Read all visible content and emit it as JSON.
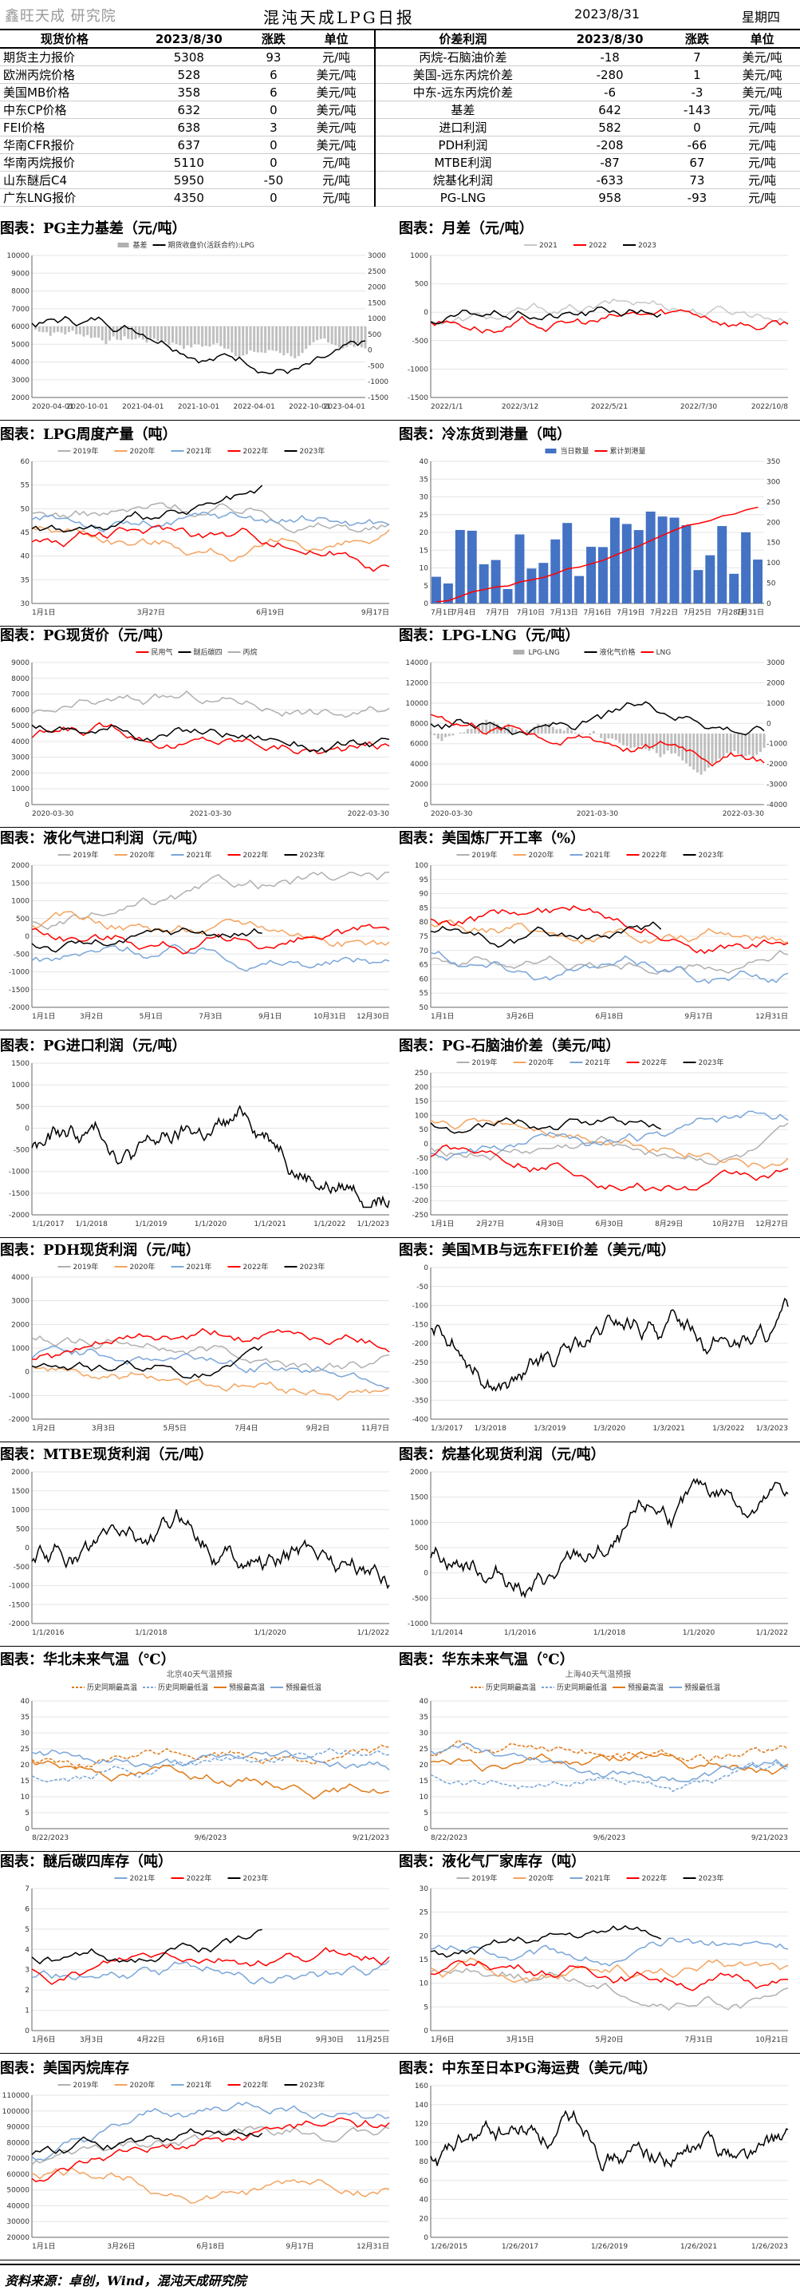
{
  "header": {
    "logo": "鑫旺天成 研究院",
    "title": "混沌天成LPG日报",
    "date": "2023/8/31",
    "weekday": "星期四"
  },
  "price_table": {
    "headers_left": [
      "现货价格",
      "2023/8/30",
      "涨跌",
      "单位"
    ],
    "headers_right": [
      "价差利润",
      "2023/8/30",
      "涨跌",
      "单位"
    ],
    "rows": [
      {
        "l": [
          "期货主力报价",
          "5308",
          "93",
          "元/吨"
        ],
        "r": [
          "丙烷-石脑油价差",
          "-18",
          "7",
          "美元/吨"
        ]
      },
      {
        "l": [
          "欧洲丙烷价格",
          "528",
          "6",
          "美元/吨"
        ],
        "r": [
          "美国-远东丙烷价差",
          "-280",
          "1",
          "美元/吨"
        ]
      },
      {
        "l": [
          "美国MB价格",
          "358",
          "6",
          "美元/吨"
        ],
        "r": [
          "中东-远东丙烷价差",
          "-6",
          "-3",
          "美元/吨"
        ]
      },
      {
        "l": [
          "中东CP价格",
          "632",
          "0",
          "美元/吨"
        ],
        "r": [
          "基差",
          "642",
          "-143",
          "元/吨"
        ]
      },
      {
        "l": [
          "FEI价格",
          "638",
          "3",
          "美元/吨"
        ],
        "r": [
          "进口利润",
          "582",
          "0",
          "元/吨"
        ]
      },
      {
        "l": [
          "华南CFR报价",
          "637",
          "0",
          "美元/吨"
        ],
        "r": [
          "PDH利润",
          "-208",
          "-66",
          "元/吨"
        ]
      },
      {
        "l": [
          "华南丙烷报价",
          "5110",
          "0",
          "元/吨"
        ],
        "r": [
          "MTBE利润",
          "-87",
          "67",
          "元/吨"
        ]
      },
      {
        "l": [
          "山东醚后C4",
          "5950",
          "-50",
          "元/吨"
        ],
        "r": [
          "烷基化利润",
          "-633",
          "73",
          "元/吨"
        ]
      },
      {
        "l": [
          "广东LNG报价",
          "4350",
          "0",
          "元/吨"
        ],
        "r": [
          "PG-LNG",
          "958",
          "-93",
          "元/吨"
        ]
      }
    ]
  },
  "charts": [
    {
      "title": "图表：PG主力基差（元/吨）",
      "legend": [
        "基差",
        "期货收盘价(活跃合约):LPG"
      ],
      "left_ticks": [
        "10000",
        "9000",
        "8000",
        "7000",
        "6000",
        "5000",
        "4000",
        "3000",
        "2000"
      ],
      "right_ticks": [
        "3000",
        "2500",
        "2000",
        "1500",
        "1000",
        "500",
        "0",
        "-500",
        "-1000",
        "-1500"
      ],
      "x_ticks": [
        "2020-04-01",
        "2020-10-01",
        "2021-04-01",
        "2021-10-01",
        "2022-04-01",
        "2022-10-01",
        "2023-04-01"
      ]
    },
    {
      "title": "图表：月差（元/吨）",
      "legend": [
        "2021",
        "2022",
        "2023"
      ],
      "left_ticks": [
        "1000",
        "500",
        "0",
        "-500",
        "-1000",
        "-1500"
      ],
      "right_ticks": [],
      "x_ticks": [
        "2022/1/1",
        "2022/3/12",
        "2022/5/21",
        "2022/7/30",
        "2022/10/8"
      ]
    },
    {
      "title": "图表：LPG周度产量（吨）",
      "legend": [
        "2019年",
        "2020年",
        "2021年",
        "2022年",
        "2023年"
      ],
      "left_ticks": [
        "60",
        "55",
        "50",
        "45",
        "40",
        "35",
        "30"
      ],
      "right_ticks": [],
      "x_ticks": [
        "1月1日",
        "3月27日",
        "6月19日",
        "9月17日"
      ]
    },
    {
      "title": "图表：冷冻货到港量（吨）",
      "legend": [
        "当日数量",
        "累计到港量"
      ],
      "left_ticks": [
        "40",
        "35",
        "30",
        "25",
        "20",
        "15",
        "10",
        "5",
        "0"
      ],
      "right_ticks": [
        "350",
        "300",
        "250",
        "200",
        "150",
        "100",
        "50",
        "0"
      ],
      "x_ticks": [
        "7月1日",
        "7月4日",
        "7月7日",
        "7月10日",
        "7月13日",
        "7月16日",
        "7月19日",
        "7月22日",
        "7月25日",
        "7月28日",
        "7月31日"
      ]
    },
    {
      "title": "图表：PG现货价（元/吨）",
      "legend": [
        "民用气",
        "醚后碳四",
        "丙烷"
      ],
      "left_ticks": [
        "9000",
        "8000",
        "7000",
        "6000",
        "5000",
        "4000",
        "3000",
        "2000",
        "1000",
        "0"
      ],
      "right_ticks": [],
      "x_ticks": [
        "2020-03-30",
        "2021-03-30",
        "2022-03-30"
      ]
    },
    {
      "title": "图表：LPG-LNG（元/吨）",
      "legend": [
        "LPG-LNG",
        "液化气价格",
        "LNG"
      ],
      "left_ticks": [
        "14000",
        "12000",
        "10000",
        "8000",
        "6000",
        "4000",
        "2000",
        "0"
      ],
      "right_ticks": [
        "3000",
        "2000",
        "1000",
        "0",
        "-1000",
        "-2000",
        "-3000",
        "-4000"
      ],
      "x_ticks": [
        "2020-03-30",
        "2021-03-30",
        "2022-03-30"
      ]
    },
    {
      "title": "图表：液化气进口利润（元/吨）",
      "legend": [
        "2019年",
        "2020年",
        "2021年",
        "2022年",
        "2023年"
      ],
      "left_ticks": [
        "2000",
        "1500",
        "1000",
        "500",
        "0",
        "-500",
        "-1000",
        "-1500",
        "-2000"
      ],
      "right_ticks": [],
      "x_ticks": [
        "1月1日",
        "3月2日",
        "5月1日",
        "7月3日",
        "9月1日",
        "10月31日",
        "12月30日"
      ]
    },
    {
      "title": "图表：美国炼厂开工率（%）",
      "legend": [
        "2019年",
        "2020年",
        "2021年",
        "2022年",
        "2023年"
      ],
      "left_ticks": [
        "100",
        "95",
        "90",
        "85",
        "80",
        "75",
        "70",
        "65",
        "60",
        "55",
        "50"
      ],
      "right_ticks": [],
      "x_ticks": [
        "1月1日",
        "3月26日",
        "6月18日",
        "9月17日",
        "12月31日"
      ]
    },
    {
      "title": "图表：PG进口利润（元/吨）",
      "legend": [],
      "left_ticks": [
        "1500",
        "1000",
        "500",
        "0",
        "-500",
        "-1000",
        "-1500",
        "-2000"
      ],
      "right_ticks": [],
      "x_ticks": [
        "1/1/2017",
        "1/1/2018",
        "1/1/2019",
        "1/1/2020",
        "1/1/2021",
        "1/1/2022",
        "1/1/2023"
      ]
    },
    {
      "title": "图表：PG-石脑油价差（美元/吨）",
      "legend": [
        "2019年",
        "2020年",
        "2021年",
        "2022年",
        "2023年"
      ],
      "left_ticks": [
        "250",
        "200",
        "150",
        "100",
        "50",
        "0",
        "-50",
        "-100",
        "-150",
        "-200",
        "-250"
      ],
      "right_ticks": [],
      "x_ticks": [
        "1月1日",
        "2月27日",
        "4月30日",
        "6月30日",
        "8月29日",
        "10月27日",
        "12月27日"
      ]
    },
    {
      "title": "图表：PDH现货利润（元/吨）",
      "legend": [
        "2019年",
        "2020年",
        "2021年",
        "2022年",
        "2023年"
      ],
      "left_ticks": [
        "4000",
        "3000",
        "2000",
        "1000",
        "0",
        "-1000",
        "-2000"
      ],
      "right_ticks": [],
      "x_ticks": [
        "1月2日",
        "3月3日",
        "5月5日",
        "7月4日",
        "9月2日",
        "11月7日"
      ]
    },
    {
      "title": "图表：美国MB与远东FEI价差（美元/吨）",
      "legend": [],
      "left_ticks": [
        "0",
        "-50",
        "-100",
        "-150",
        "-200",
        "-250",
        "-300",
        "-350",
        "-400"
      ],
      "right_ticks": [],
      "x_ticks": [
        "1/3/2017",
        "1/3/2018",
        "1/3/2019",
        "1/3/2020",
        "1/3/2021",
        "1/3/2022",
        "1/3/2023"
      ]
    },
    {
      "title": "图表：MTBE现货利润（元/吨）",
      "legend": [],
      "left_ticks": [
        "2000",
        "1500",
        "1000",
        "500",
        "0",
        "-500",
        "-1000",
        "-1500",
        "-2000"
      ],
      "right_ticks": [],
      "x_ticks": [
        "1/1/2016",
        "1/1/2018",
        "1/1/2020",
        "1/1/2022"
      ]
    },
    {
      "title": "图表：烷基化现货利润（元/吨）",
      "legend": [],
      "left_ticks": [
        "2000",
        "1500",
        "1000",
        "500",
        "0",
        "-500",
        "-1000"
      ],
      "right_ticks": [],
      "x_ticks": [
        "1/1/2014",
        "1/1/2016",
        "1/1/2018",
        "1/1/2020",
        "1/1/2022"
      ]
    },
    {
      "title": "图表：华北未来气温（℃）",
      "subtitle": "北京40天气温预报",
      "legend": [
        "历史同期最高温",
        "历史同期最低温",
        "预报最高温",
        "预报最低温"
      ],
      "left_ticks": [
        "40",
        "35",
        "30",
        "25",
        "20",
        "15",
        "10",
        "5",
        "0"
      ],
      "right_ticks": [],
      "x_ticks": [
        "8/22/2023",
        "9/6/2023",
        "9/21/2023"
      ]
    },
    {
      "title": "图表：华东未来气温（℃）",
      "subtitle": "上海40天气温预报",
      "legend": [
        "历史同期最高温",
        "历史同期最低温",
        "预报最高温",
        "预报最低温"
      ],
      "left_ticks": [
        "40",
        "35",
        "30",
        "25",
        "20",
        "15",
        "10",
        "5",
        "0"
      ],
      "right_ticks": [],
      "x_ticks": [
        "8/22/2023",
        "9/6/2023",
        "9/21/2023"
      ]
    },
    {
      "title": "图表：醚后碳四库存（吨）",
      "legend": [
        "2021年",
        "2022年",
        "2023年"
      ],
      "left_ticks": [
        "7",
        "6",
        "5",
        "4",
        "3",
        "2",
        "1",
        "0"
      ],
      "right_ticks": [],
      "x_ticks": [
        "1月6日",
        "3月3日",
        "4月22日",
        "6月16日",
        "8月5日",
        "9月30日",
        "11月25日"
      ]
    },
    {
      "title": "图表：液化气厂家库存（吨）",
      "legend": [
        "2019年",
        "2020年",
        "2021年",
        "2022年",
        "2023年"
      ],
      "left_ticks": [
        "30",
        "25",
        "20",
        "15",
        "10",
        "5",
        "0"
      ],
      "right_ticks": [],
      "x_ticks": [
        "1月6日",
        "3月15日",
        "5月20日",
        "7月31日",
        "10月21日"
      ]
    },
    {
      "title": "图表：美国丙烷库存",
      "legend": [
        "2019年",
        "2020年",
        "2021年",
        "2022年",
        "2023年"
      ],
      "left_ticks": [
        "110000",
        "100000",
        "90000",
        "80000",
        "70000",
        "60000",
        "50000",
        "40000",
        "30000",
        "20000"
      ],
      "right_ticks": [],
      "x_ticks": [
        "1月1日",
        "3月26日",
        "6月18日",
        "9月17日",
        "12月31日"
      ]
    },
    {
      "title": "图表：中东至日本PG海运费（美元/吨）",
      "legend": [],
      "left_ticks": [
        "160",
        "140",
        "120",
        "100",
        "80",
        "60",
        "40",
        "20",
        "0"
      ],
      "right_ticks": [],
      "x_ticks": [
        "1/26/2015",
        "1/26/2017",
        "1/26/2019",
        "1/26/2021",
        "1/26/2023"
      ]
    }
  ],
  "footer": {
    "source": "资料来源：卓创，Wind，混沌天成研究院"
  },
  "colors": {
    "red": "#ff0000",
    "black": "#000000",
    "gray": "#b0b0b0",
    "orange": "#f4a460",
    "blue": "#7aa6d8",
    "bar_blue": "#4472c4",
    "lightgray": "#c8c8c8",
    "darkorange": "#e07b1a",
    "green": "#2e9e5b"
  }
}
